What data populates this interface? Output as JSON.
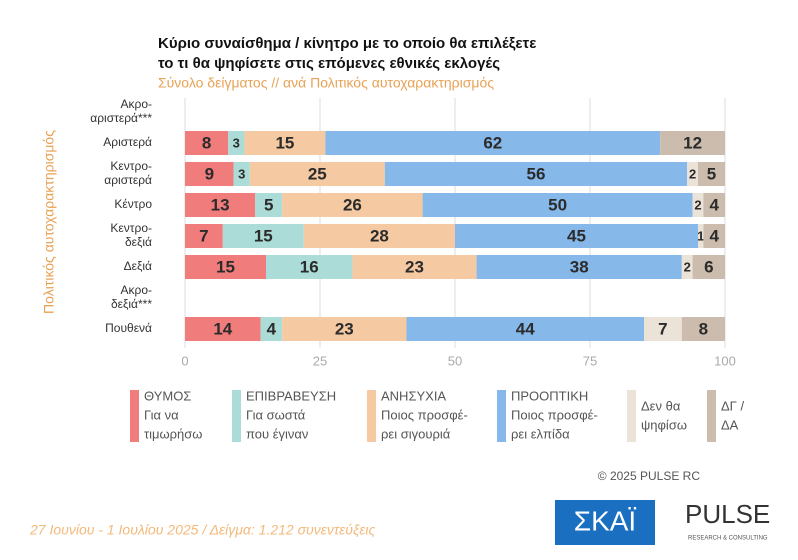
{
  "chart_data": {
    "type": "stacked-bar-horizontal",
    "title": [
      "Κύριο συναίσθημα / κίνητρο με το οποίο θα επιλέξετε",
      "το τι θα ψηφίσετε στις επόμενες εθνικές εκλογές"
    ],
    "subtitle": "Σύνολο δείγματος // ανά Πολιτικός αυτοχαρακτηρισμός",
    "y_label": "Πολιτικός αυτοχαρακτηρισμός",
    "categories": [
      [
        "Ακρο-",
        "αριστερά***"
      ],
      [
        "Αριστερά"
      ],
      [
        "Κεντρο-",
        "αριστερά"
      ],
      [
        "Κέντρο"
      ],
      [
        "Κεντρο-",
        "δεξιά"
      ],
      [
        "Δεξιά"
      ],
      [
        "Ακρο-",
        "δεξιά***"
      ],
      [
        "Πουθενά"
      ]
    ],
    "series": [
      {
        "name": [
          "ΘΥΜΟΣ",
          "Για να",
          "τιμωρήσω"
        ],
        "color": "#f07d7b",
        "values": [
          null,
          8,
          9,
          13,
          7,
          15,
          null,
          14
        ]
      },
      {
        "name": [
          "ΕΠΙΒΡΑΒΕΥΣΗ",
          "Για σωστά",
          "που έγιναν"
        ],
        "color": "#acdcd7",
        "values": [
          null,
          3,
          3,
          5,
          15,
          16,
          null,
          4
        ]
      },
      {
        "name": [
          "ΑΝΗΣΥΧΙΑ",
          "Ποιος προσφέ-",
          "ρει σιγουριά"
        ],
        "color": "#f5c9a2",
        "values": [
          null,
          15,
          25,
          26,
          28,
          23,
          null,
          23
        ]
      },
      {
        "name": [
          "ΠΡΟΟΠΤΙΚΗ",
          "Ποιος προσφέ-",
          "ρει ελπίδα"
        ],
        "color": "#86b9ea",
        "values": [
          null,
          62,
          56,
          50,
          45,
          38,
          null,
          44
        ]
      },
      {
        "name": [
          "Δεν θα",
          "ψηφίσω"
        ],
        "color": "#ebe2d8",
        "values": [
          null,
          null,
          2,
          2,
          1,
          2,
          null,
          7
        ]
      },
      {
        "name": [
          "ΔΓ /",
          "ΔΑ"
        ],
        "color": "#cbbcad",
        "values": [
          null,
          12,
          5,
          4,
          4,
          6,
          null,
          8
        ]
      }
    ],
    "xlim": [
      0,
      100
    ],
    "xticks": [
      0,
      25,
      50,
      75,
      100
    ],
    "copyright": "© 2025 PULSE RC",
    "footer": "27 Ιουνίου - 1 Ιουλίου 2025  /  Δείγμα:  1.212 συνεντεύξεις",
    "logos": [
      "ΣΚΑΪ",
      "PULSE",
      "RESEARCH & CONSULTING"
    ]
  }
}
